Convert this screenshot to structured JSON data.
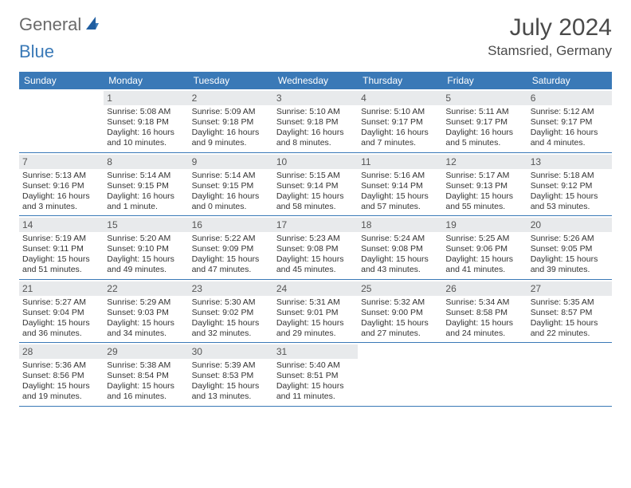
{
  "brand": {
    "text1": "General",
    "text2": "Blue"
  },
  "title": {
    "month": "July 2024",
    "location": "Stamsried, Germany"
  },
  "colors": {
    "header_bg": "#3a79b7",
    "header_text": "#ffffff",
    "daynum_bg": "#e8eaec",
    "border": "#3a79b7"
  },
  "dayheaders": [
    "Sunday",
    "Monday",
    "Tuesday",
    "Wednesday",
    "Thursday",
    "Friday",
    "Saturday"
  ],
  "weeks": [
    [
      null,
      {
        "n": "1",
        "sr": "Sunrise: 5:08 AM",
        "ss": "Sunset: 9:18 PM",
        "d1": "Daylight: 16 hours",
        "d2": "and 10 minutes."
      },
      {
        "n": "2",
        "sr": "Sunrise: 5:09 AM",
        "ss": "Sunset: 9:18 PM",
        "d1": "Daylight: 16 hours",
        "d2": "and 9 minutes."
      },
      {
        "n": "3",
        "sr": "Sunrise: 5:10 AM",
        "ss": "Sunset: 9:18 PM",
        "d1": "Daylight: 16 hours",
        "d2": "and 8 minutes."
      },
      {
        "n": "4",
        "sr": "Sunrise: 5:10 AM",
        "ss": "Sunset: 9:17 PM",
        "d1": "Daylight: 16 hours",
        "d2": "and 7 minutes."
      },
      {
        "n": "5",
        "sr": "Sunrise: 5:11 AM",
        "ss": "Sunset: 9:17 PM",
        "d1": "Daylight: 16 hours",
        "d2": "and 5 minutes."
      },
      {
        "n": "6",
        "sr": "Sunrise: 5:12 AM",
        "ss": "Sunset: 9:17 PM",
        "d1": "Daylight: 16 hours",
        "d2": "and 4 minutes."
      }
    ],
    [
      {
        "n": "7",
        "sr": "Sunrise: 5:13 AM",
        "ss": "Sunset: 9:16 PM",
        "d1": "Daylight: 16 hours",
        "d2": "and 3 minutes."
      },
      {
        "n": "8",
        "sr": "Sunrise: 5:14 AM",
        "ss": "Sunset: 9:15 PM",
        "d1": "Daylight: 16 hours",
        "d2": "and 1 minute."
      },
      {
        "n": "9",
        "sr": "Sunrise: 5:14 AM",
        "ss": "Sunset: 9:15 PM",
        "d1": "Daylight: 16 hours",
        "d2": "and 0 minutes."
      },
      {
        "n": "10",
        "sr": "Sunrise: 5:15 AM",
        "ss": "Sunset: 9:14 PM",
        "d1": "Daylight: 15 hours",
        "d2": "and 58 minutes."
      },
      {
        "n": "11",
        "sr": "Sunrise: 5:16 AM",
        "ss": "Sunset: 9:14 PM",
        "d1": "Daylight: 15 hours",
        "d2": "and 57 minutes."
      },
      {
        "n": "12",
        "sr": "Sunrise: 5:17 AM",
        "ss": "Sunset: 9:13 PM",
        "d1": "Daylight: 15 hours",
        "d2": "and 55 minutes."
      },
      {
        "n": "13",
        "sr": "Sunrise: 5:18 AM",
        "ss": "Sunset: 9:12 PM",
        "d1": "Daylight: 15 hours",
        "d2": "and 53 minutes."
      }
    ],
    [
      {
        "n": "14",
        "sr": "Sunrise: 5:19 AM",
        "ss": "Sunset: 9:11 PM",
        "d1": "Daylight: 15 hours",
        "d2": "and 51 minutes."
      },
      {
        "n": "15",
        "sr": "Sunrise: 5:20 AM",
        "ss": "Sunset: 9:10 PM",
        "d1": "Daylight: 15 hours",
        "d2": "and 49 minutes."
      },
      {
        "n": "16",
        "sr": "Sunrise: 5:22 AM",
        "ss": "Sunset: 9:09 PM",
        "d1": "Daylight: 15 hours",
        "d2": "and 47 minutes."
      },
      {
        "n": "17",
        "sr": "Sunrise: 5:23 AM",
        "ss": "Sunset: 9:08 PM",
        "d1": "Daylight: 15 hours",
        "d2": "and 45 minutes."
      },
      {
        "n": "18",
        "sr": "Sunrise: 5:24 AM",
        "ss": "Sunset: 9:08 PM",
        "d1": "Daylight: 15 hours",
        "d2": "and 43 minutes."
      },
      {
        "n": "19",
        "sr": "Sunrise: 5:25 AM",
        "ss": "Sunset: 9:06 PM",
        "d1": "Daylight: 15 hours",
        "d2": "and 41 minutes."
      },
      {
        "n": "20",
        "sr": "Sunrise: 5:26 AM",
        "ss": "Sunset: 9:05 PM",
        "d1": "Daylight: 15 hours",
        "d2": "and 39 minutes."
      }
    ],
    [
      {
        "n": "21",
        "sr": "Sunrise: 5:27 AM",
        "ss": "Sunset: 9:04 PM",
        "d1": "Daylight: 15 hours",
        "d2": "and 36 minutes."
      },
      {
        "n": "22",
        "sr": "Sunrise: 5:29 AM",
        "ss": "Sunset: 9:03 PM",
        "d1": "Daylight: 15 hours",
        "d2": "and 34 minutes."
      },
      {
        "n": "23",
        "sr": "Sunrise: 5:30 AM",
        "ss": "Sunset: 9:02 PM",
        "d1": "Daylight: 15 hours",
        "d2": "and 32 minutes."
      },
      {
        "n": "24",
        "sr": "Sunrise: 5:31 AM",
        "ss": "Sunset: 9:01 PM",
        "d1": "Daylight: 15 hours",
        "d2": "and 29 minutes."
      },
      {
        "n": "25",
        "sr": "Sunrise: 5:32 AM",
        "ss": "Sunset: 9:00 PM",
        "d1": "Daylight: 15 hours",
        "d2": "and 27 minutes."
      },
      {
        "n": "26",
        "sr": "Sunrise: 5:34 AM",
        "ss": "Sunset: 8:58 PM",
        "d1": "Daylight: 15 hours",
        "d2": "and 24 minutes."
      },
      {
        "n": "27",
        "sr": "Sunrise: 5:35 AM",
        "ss": "Sunset: 8:57 PM",
        "d1": "Daylight: 15 hours",
        "d2": "and 22 minutes."
      }
    ],
    [
      {
        "n": "28",
        "sr": "Sunrise: 5:36 AM",
        "ss": "Sunset: 8:56 PM",
        "d1": "Daylight: 15 hours",
        "d2": "and 19 minutes."
      },
      {
        "n": "29",
        "sr": "Sunrise: 5:38 AM",
        "ss": "Sunset: 8:54 PM",
        "d1": "Daylight: 15 hours",
        "d2": "and 16 minutes."
      },
      {
        "n": "30",
        "sr": "Sunrise: 5:39 AM",
        "ss": "Sunset: 8:53 PM",
        "d1": "Daylight: 15 hours",
        "d2": "and 13 minutes."
      },
      {
        "n": "31",
        "sr": "Sunrise: 5:40 AM",
        "ss": "Sunset: 8:51 PM",
        "d1": "Daylight: 15 hours",
        "d2": "and 11 minutes."
      },
      null,
      null,
      null
    ]
  ]
}
